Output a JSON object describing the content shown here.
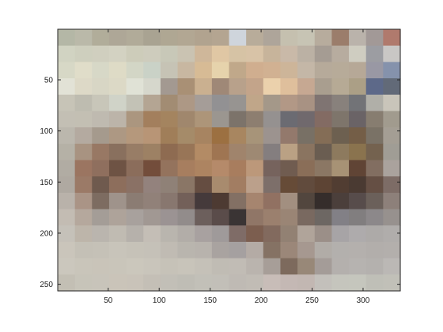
{
  "figure": {
    "type": "image",
    "x_ticks": [
      {
        "value": 50,
        "label": "50"
      },
      {
        "value": 100,
        "label": "100"
      },
      {
        "value": 150,
        "label": "150"
      },
      {
        "value": 200,
        "label": "200"
      },
      {
        "value": 250,
        "label": "250"
      },
      {
        "value": 300,
        "label": "300"
      }
    ],
    "y_ticks": [
      {
        "value": 50,
        "label": "50"
      },
      {
        "value": 100,
        "label": "100"
      },
      {
        "value": 150,
        "label": "150"
      },
      {
        "value": 200,
        "label": "200"
      },
      {
        "value": 250,
        "label": "250"
      }
    ],
    "x_range": [
      0.5,
      336.5
    ],
    "y_range": [
      0.5,
      256.5
    ],
    "y_direction": "down",
    "block_grid": {
      "cols": 20,
      "rows": 16
    },
    "pixels": [
      [
        "#b4b7a6",
        "#bab9a9",
        "#b1ad9a",
        "#aea797",
        "#b1ab99",
        "#a9a392",
        "#afa793",
        "#b2a793",
        "#b1a38f",
        "#b4a591",
        "#cfd5dc",
        "#b8ac9a",
        "#aea59a",
        "#c5c0af",
        "#c7c4b4",
        "#b7ac9d",
        "#9b7d6b",
        "#bab3ab",
        "#a29997",
        "#b07a6d"
      ],
      [
        "#d1d3c2",
        "#cecfbe",
        "#d0cfbf",
        "#d3d2c2",
        "#cdccba",
        "#ceccbd",
        "#c8c8b8",
        "#cac3b2",
        "#cfb79a",
        "#e0c7a4",
        "#d6c3a5",
        "#d8c3a7",
        "#c7b49b",
        "#c9b9a8",
        "#bbb1a4",
        "#a59c93",
        "#b7ac9f",
        "#cfcdc1",
        "#9c9da2",
        "#c9c7c5"
      ],
      [
        "#d7d8c6",
        "#e0ddc9",
        "#d7d8c7",
        "#dedbc6",
        "#d3d6c6",
        "#cad2c7",
        "#c6c3b5",
        "#c8b7a1",
        "#d7bb95",
        "#e6d3ac",
        "#c0a88a",
        "#d0ae8f",
        "#d1b192",
        "#cdb599",
        "#c4b7a7",
        "#b6aa9a",
        "#b7ab99",
        "#b6a897",
        "#9998a4",
        "#8592ac"
      ],
      [
        "#e2e2d6",
        "#ddd9c7",
        "#d8d6c5",
        "#dcd9c6",
        "#e0e2d6",
        "#d6d7cc",
        "#a39991",
        "#a99075",
        "#cab090",
        "#9f8877",
        "#b8a18b",
        "#c3a48a",
        "#ebd1ac",
        "#dfbf9c",
        "#c6a892",
        "#a99e8f",
        "#b6aa95",
        "#ab9f86",
        "#5d6989",
        "#626a78"
      ],
      [
        "#c7c4b7",
        "#bebcb0",
        "#c8c6b9",
        "#d0d3c8",
        "#c3c2b6",
        "#b4a593",
        "#a28c73",
        "#ad9885",
        "#a59d98",
        "#929193",
        "#979491",
        "#c0a689",
        "#a49889",
        "#b29886",
        "#a89283",
        "#7f7472",
        "#88817c",
        "#727377",
        "#b0afa8",
        "#c9c5ba"
      ],
      [
        "#c3bfb4",
        "#c3bfb3",
        "#bfbab0",
        "#bcb4a9",
        "#ab967f",
        "#a37f5d",
        "#a4845f",
        "#a0876d",
        "#ad9579",
        "#9b9690",
        "#7c736a",
        "#8d7e70",
        "#959190",
        "#6b6b72",
        "#70696d",
        "#836b63",
        "#7e756b",
        "#6a6366",
        "#877d70",
        "#a19b8e"
      ],
      [
        "#bbb7ad",
        "#b4aaa0",
        "#a59a8d",
        "#ad9883",
        "#b5987c",
        "#b89576",
        "#a07e59",
        "#a58b69",
        "#a78461",
        "#9c7041",
        "#a88660",
        "#a79479",
        "#9c938f",
        "#93796c",
        "#787065",
        "#846d56",
        "#6d6050",
        "#745e47",
        "#7a7266",
        "#a49e94"
      ],
      [
        "#b5b1a6",
        "#a89381",
        "#987864",
        "#89705e",
        "#987d66",
        "#9d8164",
        "#8e6b51",
        "#987557",
        "#b38b65",
        "#9f7552",
        "#a0846c",
        "#9e8973",
        "#847e7f",
        "#baa184",
        "#8a7460",
        "#6a5d51",
        "#8d7a5e",
        "#8a734e",
        "#74624f",
        "#a09d95"
      ],
      [
        "#b1aca3",
        "#9b7561",
        "#8f6f5e",
        "#6e5344",
        "#8b6d5b",
        "#734d3b",
        "#94735d",
        "#a77e5f",
        "#ad8461",
        "#b58a6a",
        "#a87d5e",
        "#bc987a",
        "#76635d",
        "#705c50",
        "#8a6e58",
        "#8b7764",
        "#a79275",
        "#604435",
        "#826e61",
        "#aaa29d"
      ],
      [
        "#afa9a1",
        "#9b7a67",
        "#6f5a4e",
        "#8d6e5c",
        "#8a7165",
        "#93827d",
        "#8f8177",
        "#8a7666",
        "#654d41",
        "#a88b6e",
        "#a27d62",
        "#bba08b",
        "#7d6f6a",
        "#664b37",
        "#614b3d",
        "#5d4434",
        "#513d32",
        "#4a3a32",
        "#654f44",
        "#7d6c66"
      ],
      [
        "#b9b2aa",
        "#aa9486",
        "#7d6c61",
        "#9f938b",
        "#8b7c73",
        "#918179",
        "#88776f",
        "#736059",
        "#453a3b",
        "#4d3a32",
        "#837064",
        "#a6856f",
        "#917162",
        "#a28f80",
        "#52463e",
        "#352d2b",
        "#4b3f3b",
        "#574c4b",
        "#6b605a",
        "#8d807a"
      ],
      [
        "#c3bcb3",
        "#b5a89d",
        "#a49d97",
        "#aea39a",
        "#a8a19d",
        "#a19893",
        "#9b9393",
        "#928c8b",
        "#6c5f5c",
        "#5a4c4a",
        "#3a3434",
        "#907667",
        "#9b806e",
        "#9a8575",
        "#796960",
        "#6d6763",
        "#828086",
        "#817e7f",
        "#8c888a",
        "#97918e"
      ],
      [
        "#c5c1b9",
        "#bdb5aa",
        "#bab5ae",
        "#c0bbb2",
        "#b6b1ab",
        "#c4beb6",
        "#b9b5ae",
        "#b2ada8",
        "#a8a1a0",
        "#9f9a9a",
        "#7f6c67",
        "#7c5e4f",
        "#826a5e",
        "#928173",
        "#b0a49a",
        "#9b8f88",
        "#a7a4a6",
        "#aeabac",
        "#adaaa8",
        "#b0adab"
      ],
      [
        "#cac5bb",
        "#c4c0b6",
        "#c5c1b7",
        "#c8c4ba",
        "#c6c2b8",
        "#c5c1b8",
        "#c0bbb3",
        "#b9b5ae",
        "#b8b3ad",
        "#a9a3a0",
        "#a5a0a0",
        "#b4aba5",
        "#857264",
        "#9b8779",
        "#a69890",
        "#b1aca7",
        "#b3b0ad",
        "#b4b0ad",
        "#b2aeab",
        "#b3afac"
      ],
      [
        "#cbc7bd",
        "#c9c5ba",
        "#c9c4b9",
        "#c9c5ba",
        "#cbc7bc",
        "#c9c5bb",
        "#c6c2b8",
        "#c8c4ba",
        "#c5c1b8",
        "#c0bcb4",
        "#c1bcb5",
        "#bab4ae",
        "#a79e98",
        "#7d6a5d",
        "#988878",
        "#a49c98",
        "#b4b0ad",
        "#b6b3b0",
        "#b4b1ae",
        "#bbb8b5"
      ],
      [
        "#c3bfb4",
        "#c7c4b9",
        "#c8c4ba",
        "#cac4b9",
        "#c9c3b9",
        "#c4bfb6",
        "#c2bfb7",
        "#bfbdb5",
        "#c2c0b8",
        "#c2bfb8",
        "#bfbab4",
        "#c1bcb5",
        "#c8bdb8",
        "#c4b8b4",
        "#c2b7b2",
        "#c3c0bb",
        "#c5c5bd",
        "#c5c6bd",
        "#bfbfb7",
        "#c1c0b8"
      ]
    ]
  }
}
